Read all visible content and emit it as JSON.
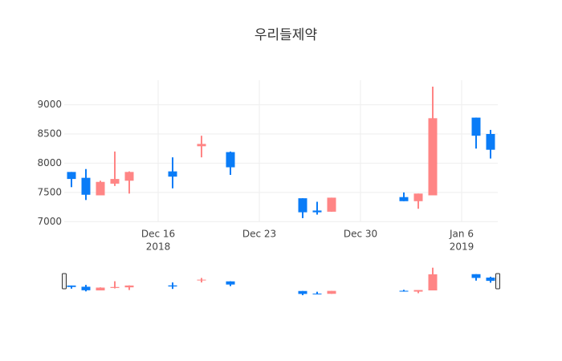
{
  "chart_data": {
    "type": "candlestick",
    "title": "우리들제약",
    "x": [
      "2018-12-10",
      "2018-12-11",
      "2018-12-12",
      "2018-12-13",
      "2018-12-14",
      "2018-12-17",
      "2018-12-19",
      "2018-12-21",
      "2018-12-26",
      "2018-12-27",
      "2018-12-28",
      "2019-01-02",
      "2019-01-03",
      "2019-01-04",
      "2019-01-07",
      "2019-01-08"
    ],
    "open": [
      7850,
      7750,
      7450,
      7650,
      7700,
      7860,
      8290,
      8190,
      7400,
      7190,
      7170,
      7420,
      7350,
      7450,
      8780,
      8500
    ],
    "high": [
      7850,
      7900,
      7700,
      8200,
      7860,
      8100,
      8470,
      8200,
      7400,
      7340,
      7410,
      7500,
      7480,
      9310,
      8780,
      8570
    ],
    "low": [
      7590,
      7370,
      7450,
      7610,
      7480,
      7570,
      8100,
      7800,
      7060,
      7120,
      7170,
      7350,
      7220,
      7450,
      8250,
      8080
    ],
    "close": [
      7730,
      7460,
      7680,
      7730,
      7850,
      7770,
      8330,
      7930,
      7160,
      7160,
      7410,
      7350,
      7480,
      8770,
      8470,
      8230
    ],
    "increasing_color": "#ff8585",
    "decreasing_color": "#0a7cf7",
    "xlim": [
      "2018-12-09T12:00:00Z",
      "2019-01-08T12:00:00Z"
    ],
    "xticks": [
      {
        "value": "2018-12-16",
        "label": [
          "Dec 16",
          "2018"
        ]
      },
      {
        "value": "2018-12-23",
        "label": [
          "Dec 23"
        ]
      },
      {
        "value": "2018-12-30",
        "label": [
          "Dec 30"
        ]
      },
      {
        "value": "2019-01-06",
        "label": [
          "Jan 6",
          "2019"
        ]
      }
    ],
    "ylim": [
      6990,
      9420
    ],
    "yticks": [
      7000,
      7500,
      8000,
      8500,
      9000
    ],
    "grid": true,
    "rangeslider": true
  }
}
